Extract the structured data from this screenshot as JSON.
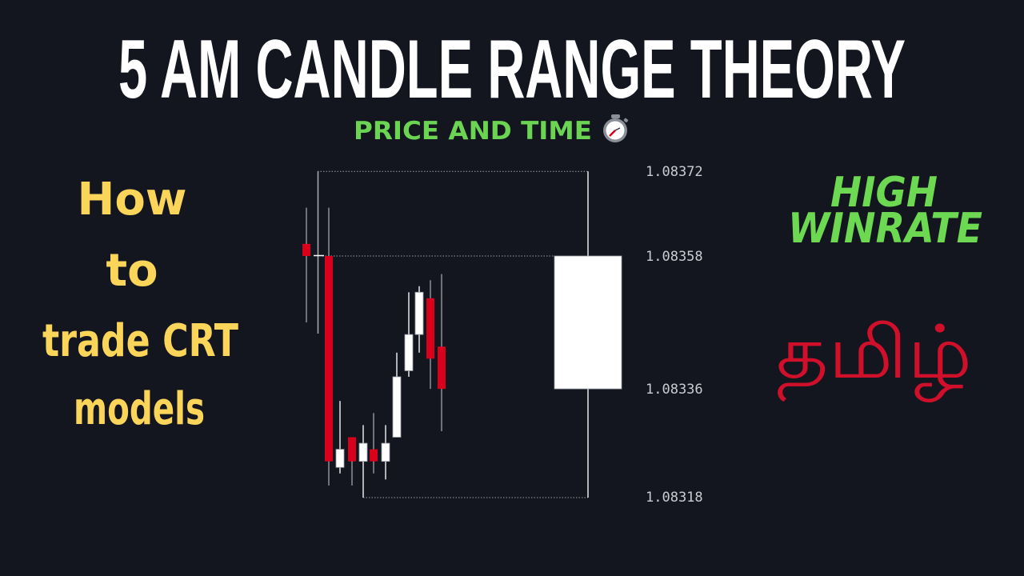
{
  "title": "5 AM CANDLE RANGE THEORY",
  "subtitle": "PRICE AND TIME",
  "subtitle_icon": "stopwatch-icon",
  "left_text": [
    "How",
    "to",
    "trade CRT",
    "models"
  ],
  "right_text": [
    "HIGH",
    "WINRATE"
  ],
  "language_label": "தமிழ்",
  "colors": {
    "background": "#13161f",
    "title": "#ffffff",
    "subtitle": "#6cd453",
    "left_text": "#fbd55a",
    "right_text": "#6dd851",
    "language_label": "#d0102a",
    "bearish": "#d9001b",
    "bullish": "#ffffff"
  },
  "chart_data": {
    "type": "candlestick",
    "y_ticks": [
      "1.08372",
      "1.08358",
      "1.08336",
      "1.08318"
    ],
    "range_levels": [
      1.08372,
      1.08358,
      1.08318
    ],
    "ltf_candles": [
      {
        "open": 1.0836,
        "high": 1.08366,
        "low": 1.08347,
        "close": 1.08358
      },
      {
        "open": 1.08358,
        "high": 1.08366,
        "low": 1.0832,
        "close": 1.08324
      },
      {
        "open": 1.08323,
        "high": 1.08334,
        "low": 1.08322,
        "close": 1.08326
      },
      {
        "open": 1.08328,
        "high": 1.08328,
        "low": 1.0832,
        "close": 1.08324
      },
      {
        "open": 1.08324,
        "high": 1.0833,
        "low": 1.08318,
        "close": 1.08327
      },
      {
        "open": 1.08326,
        "high": 1.08332,
        "low": 1.08322,
        "close": 1.08324
      },
      {
        "open": 1.08324,
        "high": 1.0833,
        "low": 1.08321,
        "close": 1.08327
      },
      {
        "open": 1.08328,
        "high": 1.08342,
        "low": 1.08328,
        "close": 1.08338
      },
      {
        "open": 1.08339,
        "high": 1.08352,
        "low": 1.08338,
        "close": 1.08345
      },
      {
        "open": 1.08345,
        "high": 1.08353,
        "low": 1.08342,
        "close": 1.08352
      },
      {
        "open": 1.08351,
        "high": 1.08354,
        "low": 1.08336,
        "close": 1.08341
      },
      {
        "open": 1.08343,
        "high": 1.08355,
        "low": 1.08329,
        "close": 1.08336
      }
    ],
    "htf_candle": {
      "open": 1.08336,
      "high": 1.08372,
      "low": 1.08318,
      "close": 1.08358
    }
  }
}
